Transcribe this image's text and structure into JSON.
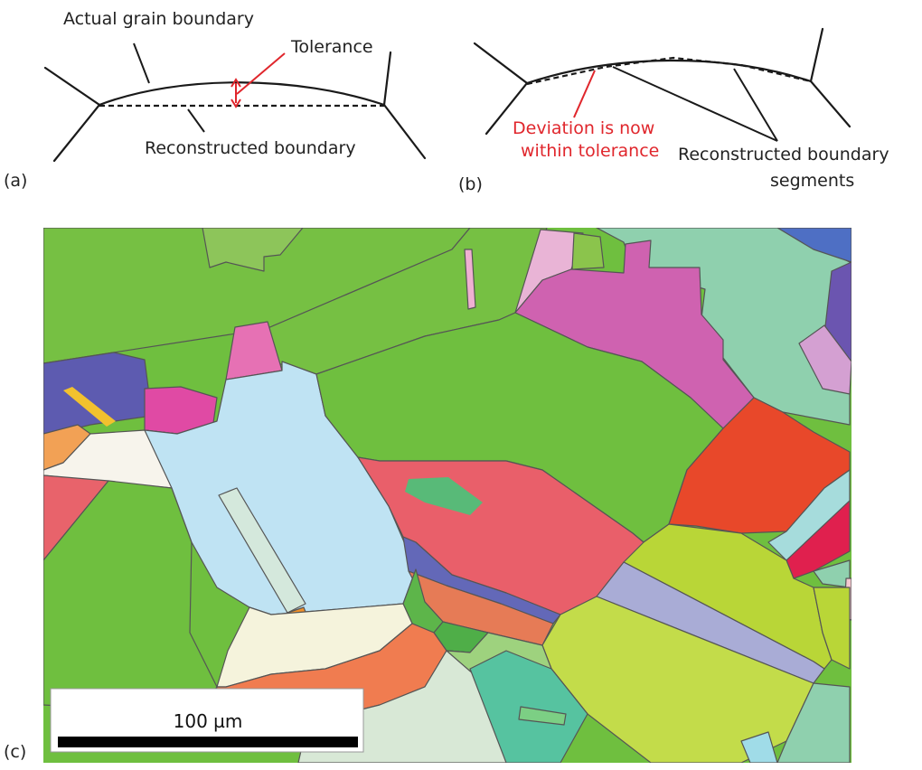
{
  "panel_a": {
    "tag": "(a)",
    "actual_label": "Actual grain boundary",
    "tolerance_label": "Tolerance",
    "reconstructed_label": "Reconstructed boundary"
  },
  "panel_b": {
    "tag": "(b)",
    "deviation_line1": "Deviation is now",
    "deviation_line2": "within tolerance",
    "segments_line1": "Reconstructed boundary",
    "segments_line2": "segments"
  },
  "panel_c": {
    "tag": "(c)",
    "scale_label": "100 µm"
  },
  "colors": {
    "text": "#222222",
    "annotation_red": "#e0262c",
    "scale_bar": "#000000"
  }
}
